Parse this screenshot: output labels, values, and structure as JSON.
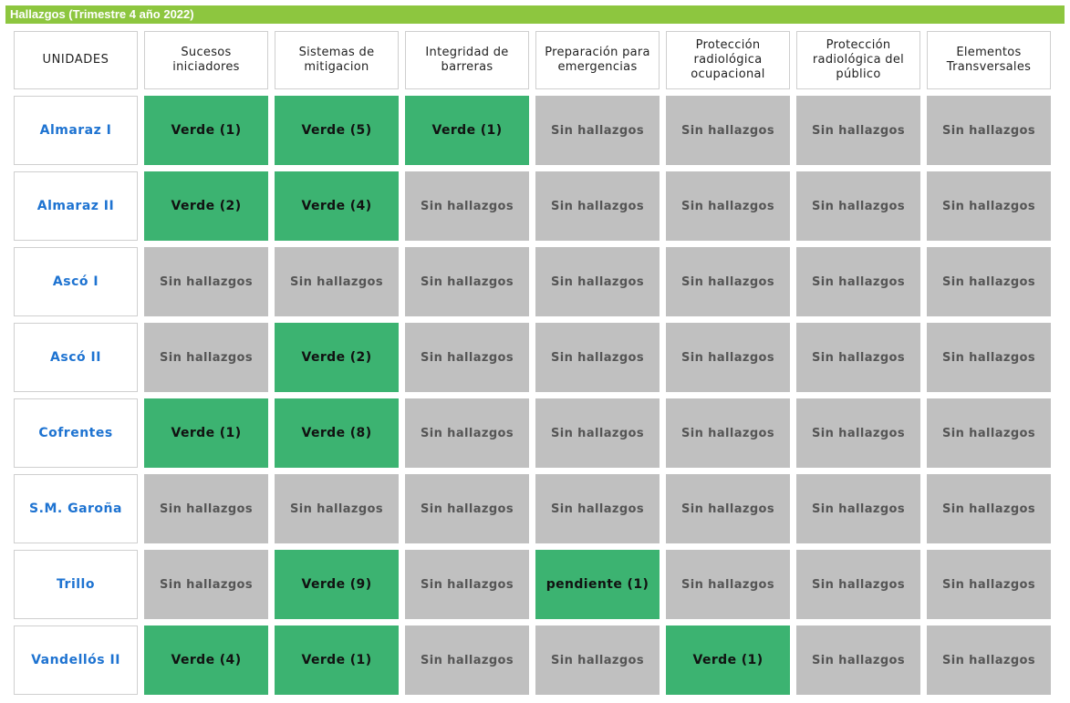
{
  "title": "Hallazgos (Trimestre 4 año 2022)",
  "colors": {
    "header_bar": "#8dc63f",
    "verde": "#3cb371",
    "sin_hallazgos": "#c0c0c0",
    "unit_link": "#1e73d1"
  },
  "columns": [
    "UNIDADES",
    "Sucesos iniciadores",
    "Sistemas de mitigacion",
    "Integridad de barreras",
    "Preparación para emergencias",
    "Protección radiológica ocupacional",
    "Protección radiológica del público",
    "Elementos Transversales"
  ],
  "rows": [
    {
      "unit": "Almaraz I",
      "cells": [
        {
          "text": "Verde (1)",
          "status": "verde"
        },
        {
          "text": "Verde (5)",
          "status": "verde"
        },
        {
          "text": "Verde (1)",
          "status": "verde"
        },
        {
          "text": "Sin hallazgos",
          "status": "none"
        },
        {
          "text": "Sin hallazgos",
          "status": "none"
        },
        {
          "text": "Sin hallazgos",
          "status": "none"
        },
        {
          "text": "Sin hallazgos",
          "status": "none"
        }
      ]
    },
    {
      "unit": "Almaraz II",
      "cells": [
        {
          "text": "Verde (2)",
          "status": "verde"
        },
        {
          "text": "Verde (4)",
          "status": "verde"
        },
        {
          "text": "Sin hallazgos",
          "status": "none"
        },
        {
          "text": "Sin hallazgos",
          "status": "none"
        },
        {
          "text": "Sin hallazgos",
          "status": "none"
        },
        {
          "text": "Sin hallazgos",
          "status": "none"
        },
        {
          "text": "Sin hallazgos",
          "status": "none"
        }
      ]
    },
    {
      "unit": "Ascó I",
      "cells": [
        {
          "text": "Sin hallazgos",
          "status": "none"
        },
        {
          "text": "Sin hallazgos",
          "status": "none"
        },
        {
          "text": "Sin hallazgos",
          "status": "none"
        },
        {
          "text": "Sin hallazgos",
          "status": "none"
        },
        {
          "text": "Sin hallazgos",
          "status": "none"
        },
        {
          "text": "Sin hallazgos",
          "status": "none"
        },
        {
          "text": "Sin hallazgos",
          "status": "none"
        }
      ]
    },
    {
      "unit": "Ascó II",
      "cells": [
        {
          "text": "Sin hallazgos",
          "status": "none"
        },
        {
          "text": "Verde (2)",
          "status": "verde"
        },
        {
          "text": "Sin hallazgos",
          "status": "none"
        },
        {
          "text": "Sin hallazgos",
          "status": "none"
        },
        {
          "text": "Sin hallazgos",
          "status": "none"
        },
        {
          "text": "Sin hallazgos",
          "status": "none"
        },
        {
          "text": "Sin hallazgos",
          "status": "none"
        }
      ]
    },
    {
      "unit": "Cofrentes",
      "cells": [
        {
          "text": "Verde (1)",
          "status": "verde"
        },
        {
          "text": "Verde (8)",
          "status": "verde"
        },
        {
          "text": "Sin hallazgos",
          "status": "none"
        },
        {
          "text": "Sin hallazgos",
          "status": "none"
        },
        {
          "text": "Sin hallazgos",
          "status": "none"
        },
        {
          "text": "Sin hallazgos",
          "status": "none"
        },
        {
          "text": "Sin hallazgos",
          "status": "none"
        }
      ]
    },
    {
      "unit": "S.M. Garoña",
      "cells": [
        {
          "text": "Sin hallazgos",
          "status": "none"
        },
        {
          "text": "Sin hallazgos",
          "status": "none"
        },
        {
          "text": "Sin hallazgos",
          "status": "none"
        },
        {
          "text": "Sin hallazgos",
          "status": "none"
        },
        {
          "text": "Sin hallazgos",
          "status": "none"
        },
        {
          "text": "Sin hallazgos",
          "status": "none"
        },
        {
          "text": "Sin hallazgos",
          "status": "none"
        }
      ]
    },
    {
      "unit": "Trillo",
      "cells": [
        {
          "text": "Sin hallazgos",
          "status": "none"
        },
        {
          "text": "Verde (9)",
          "status": "verde"
        },
        {
          "text": "Sin hallazgos",
          "status": "none"
        },
        {
          "text": "pendiente (1)",
          "status": "verde"
        },
        {
          "text": "Sin hallazgos",
          "status": "none"
        },
        {
          "text": "Sin hallazgos",
          "status": "none"
        },
        {
          "text": "Sin hallazgos",
          "status": "none"
        }
      ]
    },
    {
      "unit": "Vandellós II",
      "cells": [
        {
          "text": "Verde (4)",
          "status": "verde"
        },
        {
          "text": "Verde (1)",
          "status": "verde"
        },
        {
          "text": "Sin hallazgos",
          "status": "none"
        },
        {
          "text": "Sin hallazgos",
          "status": "none"
        },
        {
          "text": "Verde (1)",
          "status": "verde"
        },
        {
          "text": "Sin hallazgos",
          "status": "none"
        },
        {
          "text": "Sin hallazgos",
          "status": "none"
        }
      ]
    }
  ]
}
